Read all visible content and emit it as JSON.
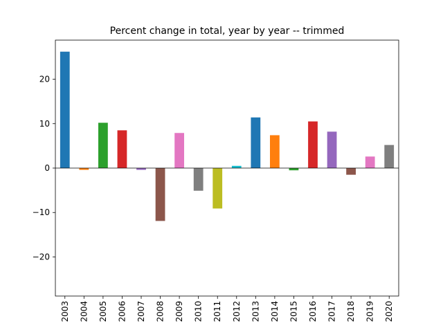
{
  "chart_data": {
    "type": "bar",
    "title": "Percent change in total, year by year -- trimmed",
    "xlabel": "_",
    "ylabel": "",
    "categories": [
      "2003",
      "2004",
      "2005",
      "2006",
      "2007",
      "2008",
      "2009",
      "2010",
      "2011",
      "2012",
      "2013",
      "2014",
      "2015",
      "2016",
      "2017",
      "2018",
      "2019",
      "2020"
    ],
    "values": [
      26.2,
      -0.4,
      10.2,
      8.5,
      -0.4,
      -11.9,
      7.9,
      -5.1,
      -9.1,
      0.5,
      11.4,
      7.4,
      -0.5,
      10.5,
      8.2,
      -1.5,
      2.6,
      5.2
    ],
    "colors": [
      "#1f77b4",
      "#ff7f0e",
      "#2ca02c",
      "#d62728",
      "#9467bd",
      "#8c564b",
      "#e377c2",
      "#7f7f7f",
      "#bcbd22",
      "#17becf",
      "#1f77b4",
      "#ff7f0e",
      "#2ca02c",
      "#d62728",
      "#9467bd",
      "#8c564b",
      "#e377c2",
      "#7f7f7f"
    ],
    "ylim": [
      -28.8,
      28.8
    ],
    "yticks": [
      -20,
      -10,
      0,
      10,
      20
    ],
    "ytick_labels": [
      "−20",
      "−10",
      "0",
      "10",
      "20"
    ],
    "grid": false,
    "legend": "none"
  }
}
